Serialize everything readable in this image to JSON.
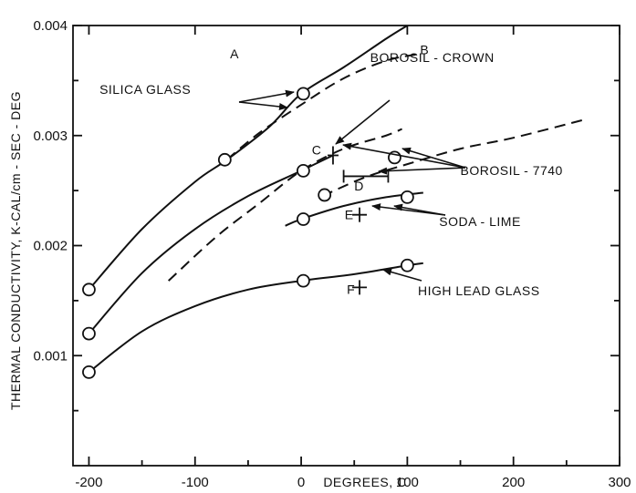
{
  "chart_data": {
    "type": "line",
    "title": "",
    "xlabel": "DEGREES, C",
    "ylabel": "THERMAL CONDUCTIVITY, K-CAL/cm - SEC - DEG",
    "xlim": [
      -215,
      300
    ],
    "ylim": [
      0,
      0.004
    ],
    "grid": false,
    "x_ticks": [
      {
        "value": -200,
        "label": "-200"
      },
      {
        "value": -100,
        "label": "-100"
      },
      {
        "value": 0,
        "label": "0"
      },
      {
        "value": 100,
        "label": "100"
      },
      {
        "value": 200,
        "label": "200"
      },
      {
        "value": 300,
        "label": "300"
      }
    ],
    "y_ticks": [
      {
        "value": 0.001,
        "label": "0.001"
      },
      {
        "value": 0.002,
        "label": "0.002"
      },
      {
        "value": 0.003,
        "label": "0.003"
      },
      {
        "value": 0.004,
        "label": "0.004"
      }
    ],
    "series": [
      {
        "name": "A",
        "style": "solid",
        "x": [
          -200,
          -150,
          -100,
          -70,
          -30,
          0,
          40,
          80,
          100
        ],
        "y": [
          0.0016,
          0.00215,
          0.00258,
          0.00278,
          0.00308,
          0.00338,
          0.00362,
          0.00388,
          0.004
        ]
      },
      {
        "name": "B",
        "style": "dashed",
        "x": [
          -70,
          -40,
          0,
          40,
          80,
          110
        ],
        "y": [
          0.00278,
          0.00302,
          0.00328,
          0.00352,
          0.00368,
          0.00374
        ]
      },
      {
        "name": "C",
        "style": "solid",
        "x": [
          -200,
          -150,
          -100,
          -50,
          0,
          30
        ],
        "y": [
          0.0012,
          0.00175,
          0.00215,
          0.00245,
          0.00268,
          0.00282
        ]
      },
      {
        "name": "Borosil - crown (dashed)",
        "style": "dashed",
        "x": [
          -125,
          -80,
          -40,
          0,
          40,
          80,
          95
        ],
        "y": [
          0.00168,
          0.00208,
          0.00238,
          0.00268,
          0.00288,
          0.003,
          0.00306
        ]
      },
      {
        "name": "Borosil - 7740 (dashed)",
        "style": "dashed",
        "x": [
          20,
          60,
          100,
          150,
          200,
          265
        ],
        "y": [
          0.00245,
          0.00262,
          0.00274,
          0.00288,
          0.00298,
          0.00314
        ]
      },
      {
        "name": "D",
        "style": "solid",
        "x": [
          -15,
          0,
          40,
          80,
          115
        ],
        "y": [
          0.00218,
          0.00224,
          0.00236,
          0.00244,
          0.00248
        ]
      },
      {
        "name": "F",
        "style": "solid",
        "x": [
          -200,
          -150,
          -100,
          -50,
          0,
          50,
          100,
          115
        ],
        "y": [
          0.00085,
          0.00122,
          0.00145,
          0.0016,
          0.00168,
          0.00174,
          0.00182,
          0.00184
        ]
      }
    ],
    "circle_points": [
      {
        "x": -200,
        "y": 0.0016
      },
      {
        "x": -200,
        "y": 0.0012
      },
      {
        "x": -200,
        "y": 0.00085
      },
      {
        "x": -72,
        "y": 0.00278
      },
      {
        "x": 2,
        "y": 0.00338
      },
      {
        "x": 2,
        "y": 0.00268
      },
      {
        "x": 2,
        "y": 0.00224
      },
      {
        "x": 2,
        "y": 0.00168
      },
      {
        "x": 22,
        "y": 0.00246
      },
      {
        "x": 88,
        "y": 0.0028
      },
      {
        "x": 100,
        "y": 0.00244
      },
      {
        "x": 100,
        "y": 0.00182
      }
    ],
    "cross_points": [
      {
        "x": 55,
        "y": 0.00228
      },
      {
        "x": 55,
        "y": 0.00162
      }
    ],
    "error_bars": [
      {
        "x": 30,
        "y": 0.00282,
        "xmin": 30,
        "xmax": 30
      },
      {
        "x": 55,
        "y": 0.00263,
        "xmin": 40,
        "xmax": 82
      }
    ],
    "annotations": [
      {
        "text": "A",
        "x": -67,
        "y": 0.0037
      },
      {
        "text": "B",
        "x": 112,
        "y": 0.00374
      },
      {
        "text": "C",
        "x": 10,
        "y": 0.00283
      },
      {
        "text": "D",
        "x": 50,
        "y": 0.0025
      },
      {
        "text": "E",
        "x": 41,
        "y": 0.00224
      },
      {
        "text": "F",
        "x": 43,
        "y": 0.00156
      },
      {
        "text": "SILICA GLASS",
        "x": -190,
        "y": 0.00338
      },
      {
        "text": "BOROSIL - CROWN",
        "x": 65,
        "y": 0.00367
      },
      {
        "text": "BOROSIL - 7740",
        "x": 150,
        "y": 0.00264
      },
      {
        "text": "SODA - LIME",
        "x": 130,
        "y": 0.00218
      },
      {
        "text": "HIGH LEAD GLASS",
        "x": 110,
        "y": 0.00155
      }
    ]
  }
}
